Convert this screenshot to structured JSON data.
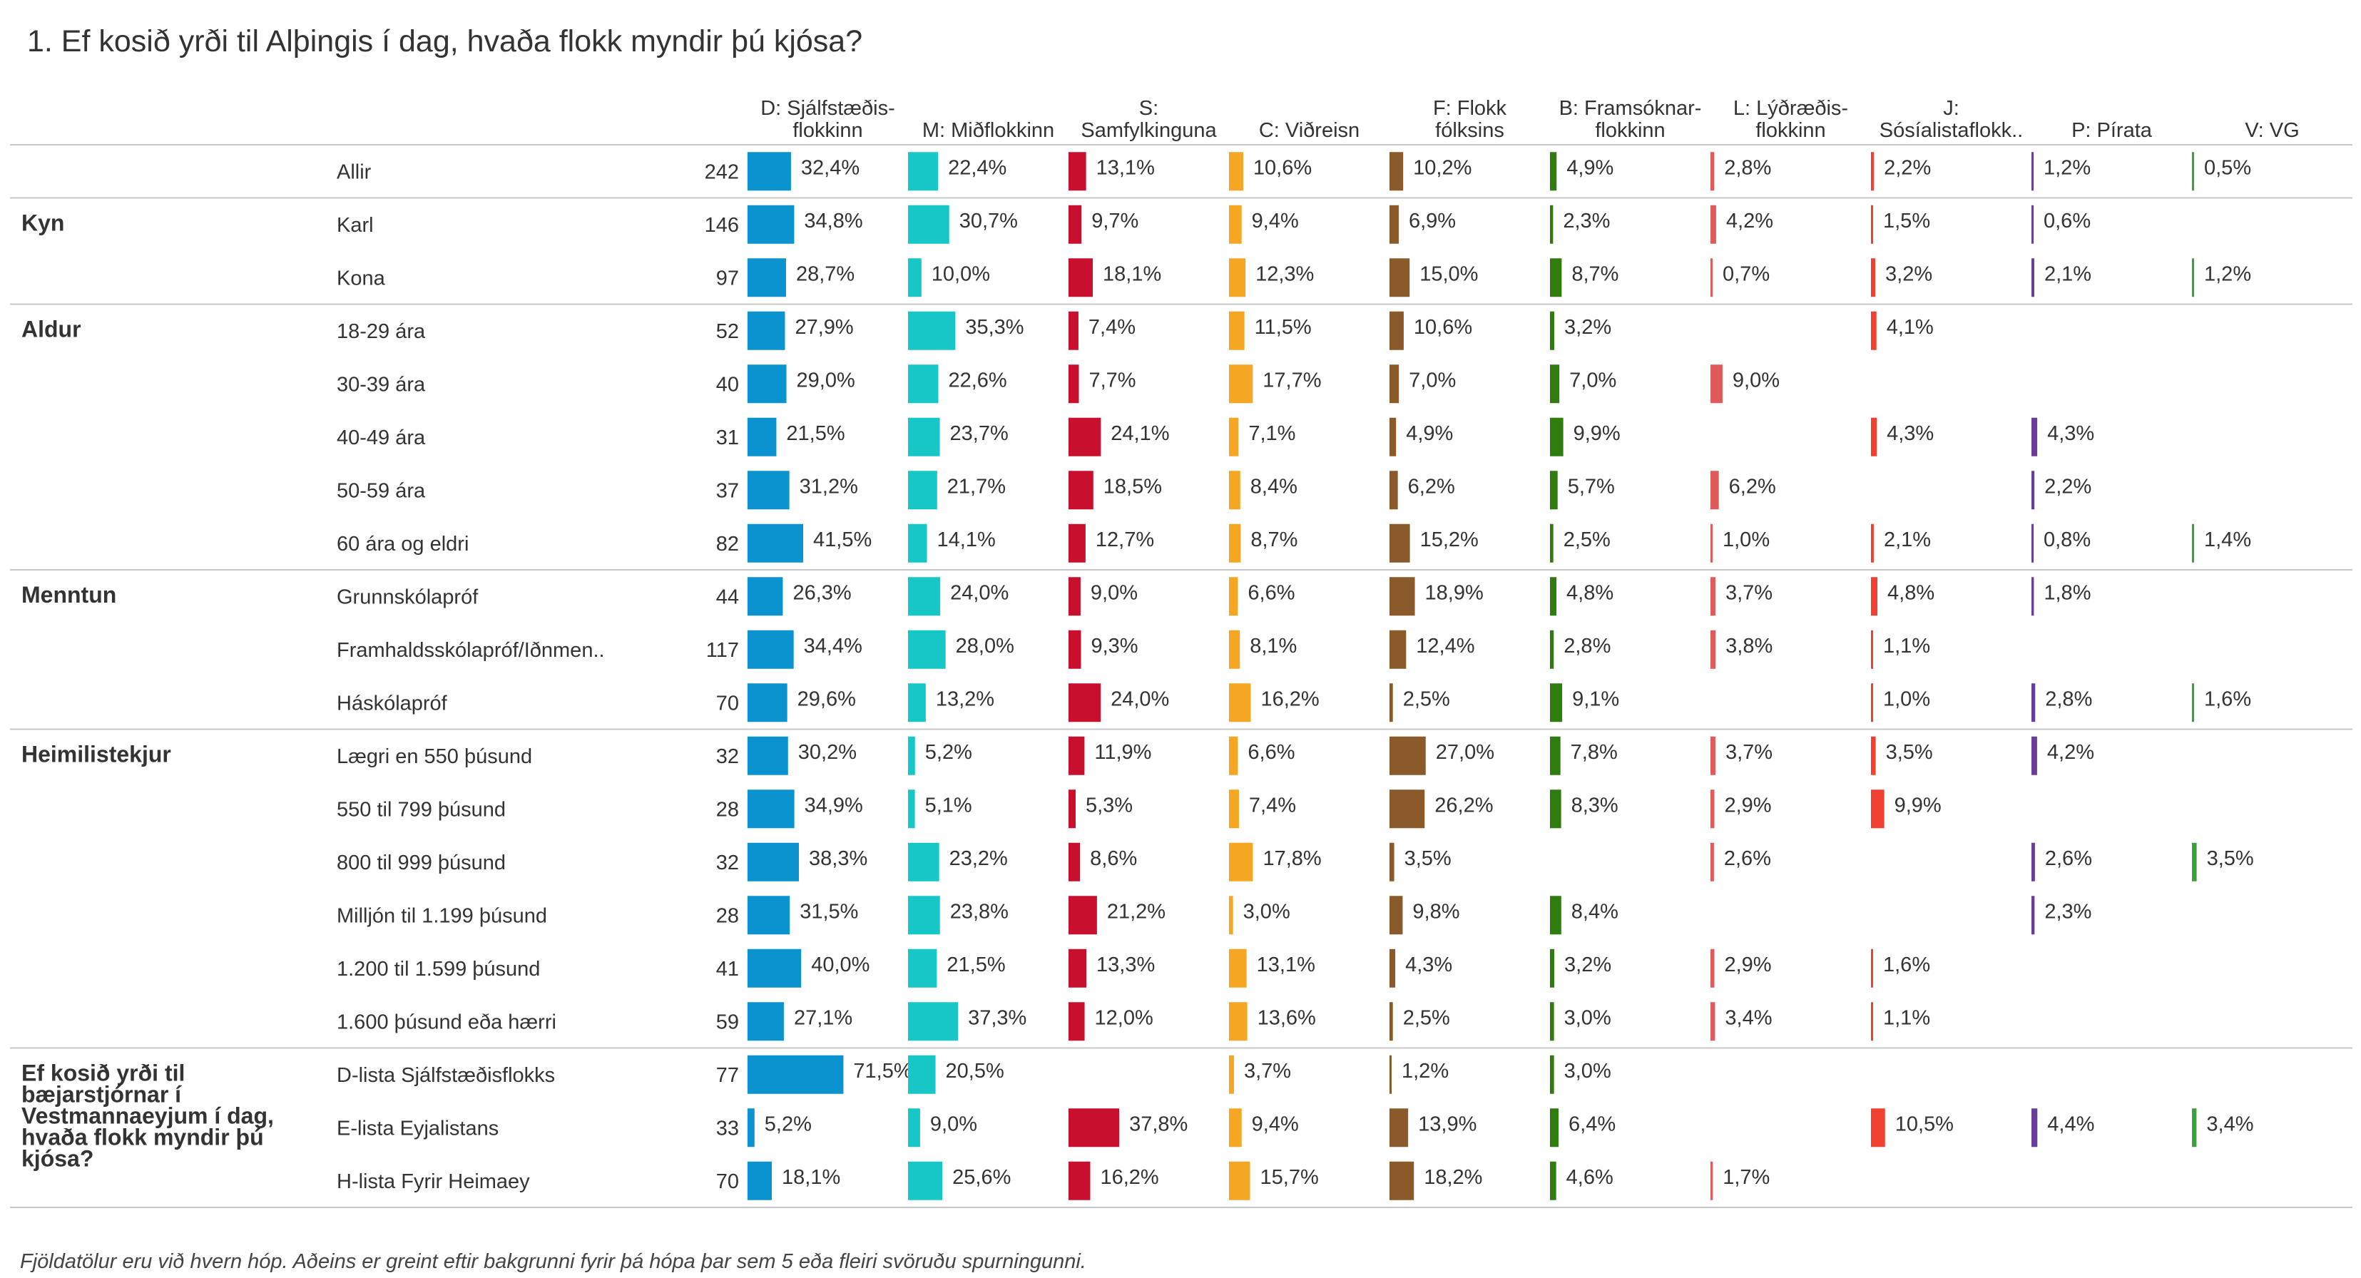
{
  "title": "1. Ef kosið yrði til Alþingis í dag, hvaða flokk myndir þú kjósa?",
  "footnote": "Fjöldatölur eru við hvern hóp. Aðeins er greint eftir bakgrunni fyrir þá hópa þar sem 5 eða fleiri svöruðu spurningunni.",
  "chart_data": {
    "type": "bar",
    "title": "1. Ef kosið yrði til Alþingis í dag, hvaða flokk myndir þú kjósa?",
    "value_format": "percent, comma decimal",
    "columns": [
      {
        "lines": [
          "D: Sjálfstæðis-",
          "flokkinn"
        ],
        "color": "#0a93cf"
      },
      {
        "lines": [
          "M: Miðflokkinn"
        ],
        "color": "#17c7c7"
      },
      {
        "lines": [
          "S:",
          "Samfylkinguna"
        ],
        "color": "#c8102e"
      },
      {
        "lines": [
          "C: Viðreisn"
        ],
        "color": "#f5a623"
      },
      {
        "lines": [
          "F: Flokk",
          "fólksins"
        ],
        "color": "#8b5a2b"
      },
      {
        "lines": [
          "B: Framsóknar-",
          "flokkinn"
        ],
        "color": "#2e7d0e"
      },
      {
        "lines": [
          "L: Lýðræðis-",
          "flokkinn"
        ],
        "color": "#e05a5a"
      },
      {
        "lines": [
          "J:",
          "Sósíalistaflokk.."
        ],
        "color": "#f04030"
      },
      {
        "lines": [
          "P: Pírata"
        ],
        "color": "#6a3d9a"
      },
      {
        "lines": [
          "V: VG"
        ],
        "color": "#3aa13a"
      }
    ],
    "groups": [
      {
        "label_lines": [],
        "rows": [
          {
            "label": "Allir",
            "n": 242,
            "values": [
              32.4,
              22.4,
              13.1,
              10.6,
              10.2,
              4.9,
              2.8,
              2.2,
              1.2,
              0.5
            ]
          }
        ]
      },
      {
        "label_lines": [
          "Kyn"
        ],
        "rows": [
          {
            "label": "Karl",
            "n": 146,
            "values": [
              34.8,
              30.7,
              9.7,
              9.4,
              6.9,
              2.3,
              4.2,
              1.5,
              0.6,
              null
            ]
          },
          {
            "label": "Kona",
            "n": 97,
            "values": [
              28.7,
              10.0,
              18.1,
              12.3,
              15.0,
              8.7,
              0.7,
              3.2,
              2.1,
              1.2
            ]
          }
        ]
      },
      {
        "label_lines": [
          "Aldur"
        ],
        "rows": [
          {
            "label": "18-29 ára",
            "n": 52,
            "values": [
              27.9,
              35.3,
              7.4,
              11.5,
              10.6,
              3.2,
              null,
              4.1,
              null,
              null
            ]
          },
          {
            "label": "30-39 ára",
            "n": 40,
            "values": [
              29.0,
              22.6,
              7.7,
              17.7,
              7.0,
              7.0,
              9.0,
              null,
              null,
              null
            ]
          },
          {
            "label": "40-49 ára",
            "n": 31,
            "values": [
              21.5,
              23.7,
              24.1,
              7.1,
              4.9,
              9.9,
              null,
              4.3,
              4.3,
              null
            ]
          },
          {
            "label": "50-59 ára",
            "n": 37,
            "values": [
              31.2,
              21.7,
              18.5,
              8.4,
              6.2,
              5.7,
              6.2,
              null,
              2.2,
              null
            ]
          },
          {
            "label": "60 ára og eldri",
            "n": 82,
            "values": [
              41.5,
              14.1,
              12.7,
              8.7,
              15.2,
              2.5,
              1.0,
              2.1,
              0.8,
              1.4
            ]
          }
        ]
      },
      {
        "label_lines": [
          "Menntun"
        ],
        "rows": [
          {
            "label": "Grunnskólapróf",
            "n": 44,
            "values": [
              26.3,
              24.0,
              9.0,
              6.6,
              18.9,
              4.8,
              3.7,
              4.8,
              1.8,
              null
            ]
          },
          {
            "label": "Framhaldsskólapróf/Iðnmen..",
            "n": 117,
            "values": [
              34.4,
              28.0,
              9.3,
              8.1,
              12.4,
              2.8,
              3.8,
              1.1,
              null,
              null
            ]
          },
          {
            "label": "Háskólapróf",
            "n": 70,
            "values": [
              29.6,
              13.2,
              24.0,
              16.2,
              2.5,
              9.1,
              null,
              1.0,
              2.8,
              1.6
            ]
          }
        ]
      },
      {
        "label_lines": [
          "Heimilistekjur"
        ],
        "rows": [
          {
            "label": "Lægri en 550 þúsund",
            "n": 32,
            "values": [
              30.2,
              5.2,
              11.9,
              6.6,
              27.0,
              7.8,
              3.7,
              3.5,
              4.2,
              null
            ]
          },
          {
            "label": "550 til 799 þúsund",
            "n": 28,
            "values": [
              34.9,
              5.1,
              5.3,
              7.4,
              26.2,
              8.3,
              2.9,
              9.9,
              null,
              null
            ]
          },
          {
            "label": "800 til 999 þúsund",
            "n": 32,
            "values": [
              38.3,
              23.2,
              8.6,
              17.8,
              3.5,
              null,
              2.6,
              null,
              2.6,
              3.5
            ]
          },
          {
            "label": "Milljón til 1.199 þúsund",
            "n": 28,
            "values": [
              31.5,
              23.8,
              21.2,
              3.0,
              9.8,
              8.4,
              null,
              null,
              2.3,
              null
            ]
          },
          {
            "label": "1.200 til 1.599 þúsund",
            "n": 41,
            "values": [
              40.0,
              21.5,
              13.3,
              13.1,
              4.3,
              3.2,
              2.9,
              1.6,
              null,
              null
            ]
          },
          {
            "label": "1.600 þúsund eða hærri",
            "n": 59,
            "values": [
              27.1,
              37.3,
              12.0,
              13.6,
              2.5,
              3.0,
              3.4,
              1.1,
              null,
              null
            ]
          }
        ]
      },
      {
        "label_lines": [
          "Ef kosið yrði til",
          "bæjarstjórnar í",
          "Vestmannaeyjum í dag,",
          "hvaða flokk myndir þú",
          "kjósa?"
        ],
        "rows": [
          {
            "label": "D-lista Sjálfstæðisflokks",
            "n": 77,
            "values": [
              71.5,
              20.5,
              null,
              3.7,
              1.2,
              3.0,
              null,
              null,
              null,
              null
            ]
          },
          {
            "label": "E-lista Eyjalistans",
            "n": 33,
            "values": [
              5.2,
              9.0,
              37.8,
              9.4,
              13.9,
              6.4,
              null,
              10.5,
              4.4,
              3.4
            ]
          },
          {
            "label": "H-lista Fyrir Heimaey",
            "n": 70,
            "values": [
              18.1,
              25.6,
              16.2,
              15.7,
              18.2,
              4.6,
              1.7,
              null,
              null,
              null
            ]
          }
        ]
      }
    ]
  }
}
